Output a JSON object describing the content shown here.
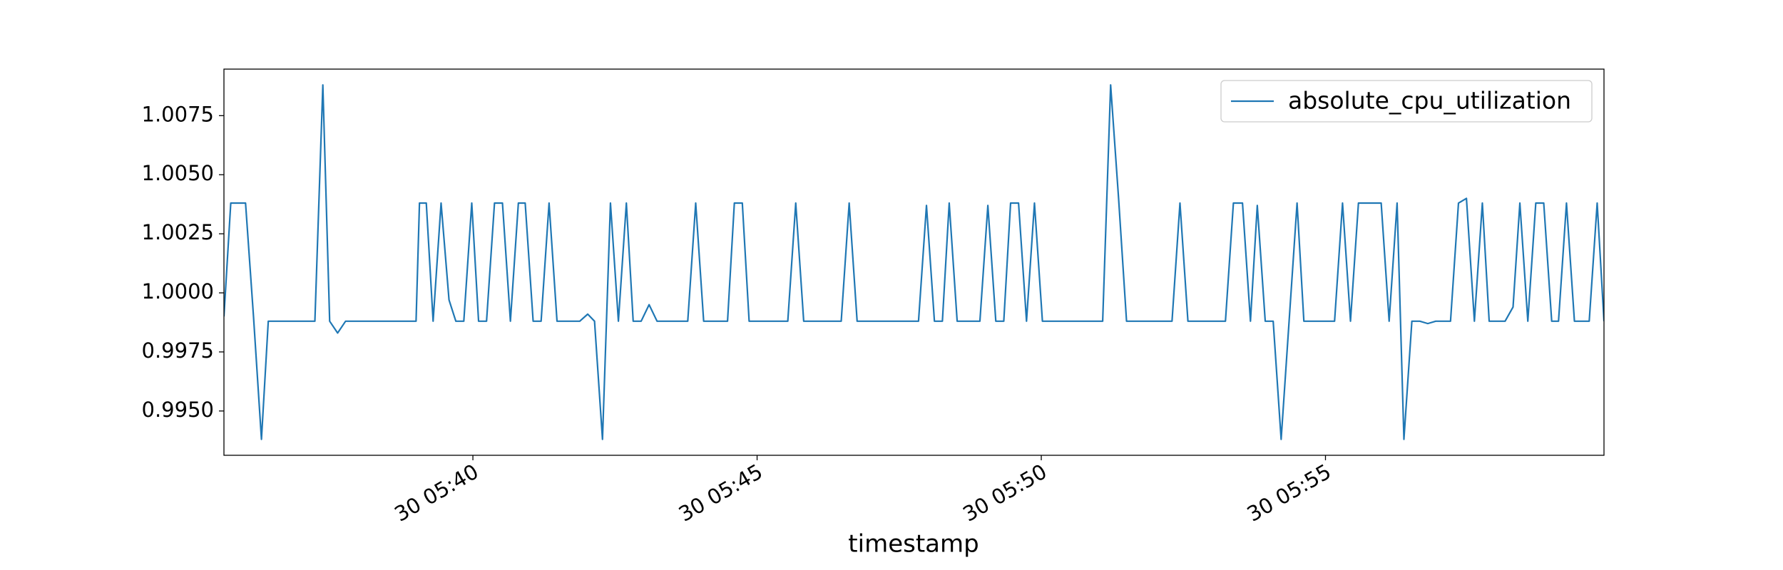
{
  "chart_data": {
    "type": "line",
    "xlabel": "timestamp",
    "x": [
      35.62,
      35.74,
      36.0,
      36.14,
      36.28,
      36.4,
      36.68,
      36.94,
      37.22,
      37.36,
      37.48,
      37.62,
      37.76,
      37.9,
      38.04,
      38.3,
      38.44,
      38.58,
      38.72,
      38.86,
      39.0,
      39.06,
      39.18,
      39.3,
      39.44,
      39.58,
      39.7,
      39.84,
      39.98,
      40.1,
      40.24,
      40.38,
      40.52,
      40.66,
      40.8,
      40.92,
      41.06,
      41.2,
      41.34,
      41.48,
      41.62,
      41.88,
      42.02,
      42.14,
      42.28,
      42.42,
      42.56,
      42.7,
      42.82,
      42.96,
      43.1,
      43.24,
      43.38,
      43.64,
      43.78,
      43.92,
      44.06,
      44.2,
      44.34,
      44.48,
      44.6,
      44.74,
      44.86,
      45.0,
      45.28,
      45.54,
      45.68,
      45.82,
      45.96,
      46.22,
      46.48,
      46.62,
      46.76,
      47.04,
      47.48,
      47.84,
      47.98,
      48.12,
      48.26,
      48.38,
      48.52,
      48.66,
      48.92,
      49.06,
      49.2,
      49.34,
      49.46,
      49.6,
      49.74,
      49.88,
      50.02,
      50.28,
      50.68,
      51.08,
      51.22,
      51.36,
      51.5,
      51.76,
      52.02,
      52.3,
      52.44,
      52.58,
      52.84,
      53.24,
      53.38,
      53.54,
      53.68,
      53.8,
      53.94,
      54.08,
      54.22,
      54.36,
      54.5,
      54.62,
      55.04,
      55.16,
      55.3,
      55.44,
      55.58,
      55.72,
      55.98,
      56.12,
      56.26,
      56.38,
      56.52,
      56.66,
      56.8,
      56.94,
      57.2,
      57.34,
      57.48,
      57.62,
      57.76,
      57.88,
      58.16,
      58.3,
      58.42,
      58.56,
      58.7,
      58.84,
      58.98,
      59.1,
      59.24,
      59.38,
      59.64,
      59.78,
      59.9
    ],
    "series": [
      {
        "name": "absolute_cpu_utilization",
        "color": "#1f77b4",
        "values": [
          0.999,
          1.0038,
          1.0038,
          0.999,
          0.9938,
          0.9988,
          0.9988,
          0.9988,
          0.9988,
          1.0088,
          0.9988,
          0.9983,
          0.9988,
          0.9988,
          0.9988,
          0.9988,
          0.9988,
          0.9988,
          0.9988,
          0.9988,
          0.9988,
          1.0038,
          1.0038,
          0.9988,
          1.0038,
          0.9997,
          0.9988,
          0.9988,
          1.0038,
          0.9988,
          0.9988,
          1.0038,
          1.0038,
          0.9988,
          1.0038,
          1.0038,
          0.9988,
          0.9988,
          1.0038,
          0.9988,
          0.9988,
          0.9988,
          0.9991,
          0.9988,
          0.9938,
          1.0038,
          0.9988,
          1.0038,
          0.9988,
          0.9988,
          0.9995,
          0.9988,
          0.9988,
          0.9988,
          0.9988,
          1.0038,
          0.9988,
          0.9988,
          0.9988,
          0.9988,
          1.0038,
          1.0038,
          0.9988,
          0.9988,
          0.9988,
          0.9988,
          1.0038,
          0.9988,
          0.9988,
          0.9988,
          0.9988,
          1.0038,
          0.9988,
          0.9988,
          0.9988,
          0.9988,
          1.0037,
          0.9988,
          0.9988,
          1.0038,
          0.9988,
          0.9988,
          0.9988,
          1.0037,
          0.9988,
          0.9988,
          1.0038,
          1.0038,
          0.9988,
          1.0038,
          0.9988,
          0.9988,
          0.9988,
          0.9988,
          1.0088,
          1.004,
          0.9988,
          0.9988,
          0.9988,
          0.9988,
          1.0038,
          0.9988,
          0.9988,
          0.9988,
          1.0038,
          1.0038,
          0.9988,
          1.0037,
          0.9988,
          0.9988,
          0.9938,
          0.9988,
          1.0038,
          0.9988,
          0.9988,
          0.9988,
          1.0038,
          0.9988,
          1.0038,
          1.0038,
          1.0038,
          0.9988,
          1.0038,
          0.9938,
          0.9988,
          0.9988,
          0.9987,
          0.9988,
          0.9988,
          1.0038,
          1.004,
          0.9988,
          1.0038,
          0.9988,
          0.9988,
          0.9994,
          1.0038,
          0.9988,
          1.0038,
          1.0038,
          0.9988,
          0.9988,
          1.0038,
          0.9988,
          0.9988,
          1.0038,
          0.9988
        ]
      }
    ],
    "xlim": [
      35.62,
      59.9
    ],
    "xticks": [
      {
        "value": 40,
        "label": "30 05:40"
      },
      {
        "value": 45,
        "label": "30 05:45"
      },
      {
        "value": 50,
        "label": "30 05:50"
      },
      {
        "value": 55,
        "label": "30 05:55"
      }
    ],
    "ylim": [
      0.993125,
      1.00947
    ],
    "yticks": [
      {
        "value": 0.995,
        "label": "0.9950"
      },
      {
        "value": 0.9975,
        "label": "0.9975"
      },
      {
        "value": 1.0,
        "label": "1.0000"
      },
      {
        "value": 1.0025,
        "label": "1.0025"
      },
      {
        "value": 1.005,
        "label": "1.0050"
      },
      {
        "value": 1.0075,
        "label": "1.0075"
      }
    ],
    "legend": "upper right"
  }
}
